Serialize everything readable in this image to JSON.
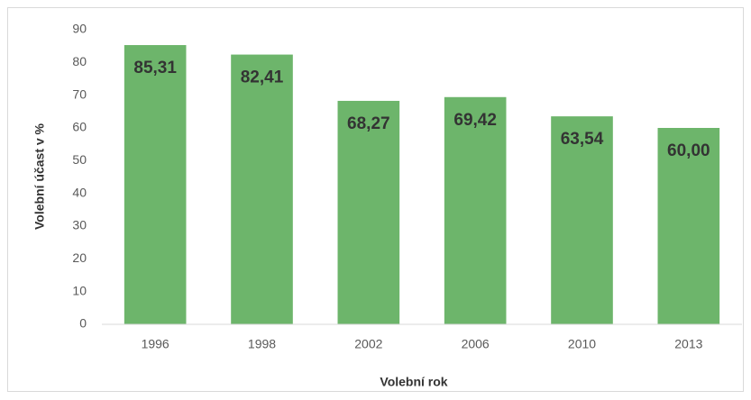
{
  "chart_data": {
    "type": "bar",
    "x_label": "Volební rok",
    "y_label": "Volební účast v %",
    "categories": [
      "1996",
      "1998",
      "2002",
      "2006",
      "2010",
      "2013"
    ],
    "values": [
      85.31,
      82.41,
      68.27,
      69.42,
      63.54,
      60.0
    ],
    "value_labels": [
      "85,31",
      "82,41",
      "68,27",
      "69,42",
      "63,54",
      "60,00"
    ],
    "color": "#6db56b",
    "ylim": [
      0,
      90
    ],
    "yticks": [
      0,
      10,
      20,
      30,
      40,
      50,
      60,
      70,
      80,
      90
    ],
    "grid": false
  }
}
